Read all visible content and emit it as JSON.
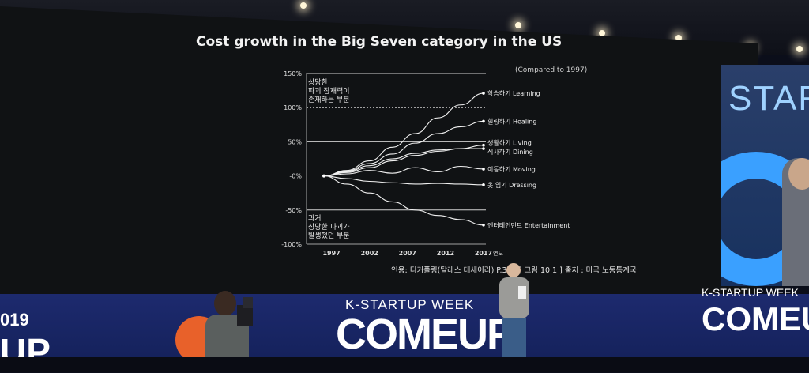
{
  "slide": {
    "title": "Cost growth in the Big Seven category in the US",
    "subtitle": "(Compared to 1997)",
    "annotation_top": [
      "상당한",
      "파괴 잠재력이",
      "존재하는 부분"
    ],
    "annotation_bottom": [
      "과거",
      "상당한 파괴가",
      "발생했던 부분"
    ],
    "caption": "인용: 디커플링(탈레스 테세이라) P.355 [ 그림 10.1 ]   출처 : 미국 노동통계국"
  },
  "chart_data": {
    "type": "line",
    "x_ticks": [
      "1997",
      "2002",
      "2007",
      "2012",
      "2017"
    ],
    "x_unit": "연도",
    "y_ticks": [
      "150%",
      "100%",
      "50%",
      "-0%",
      "-50%",
      "-100%"
    ],
    "ylim": [
      -100,
      150
    ],
    "x": [
      1996,
      1999,
      2002,
      2005,
      2008,
      2011,
      2014,
      2017
    ],
    "series": [
      {
        "name": "학습하기 Learning",
        "values": [
          0,
          8,
          22,
          42,
          62,
          85,
          104,
          121
        ]
      },
      {
        "name": "힐링하기 Healing",
        "values": [
          0,
          7,
          18,
          32,
          48,
          62,
          72,
          80
        ]
      },
      {
        "name": "생활하기 Living",
        "values": [
          0,
          6,
          15,
          25,
          33,
          38,
          40,
          45
        ]
      },
      {
        "name": "식사하기 Dining",
        "values": [
          0,
          5,
          12,
          22,
          30,
          36,
          40,
          40
        ]
      },
      {
        "name": "이동하기 Moving",
        "values": [
          0,
          3,
          8,
          4,
          12,
          6,
          14,
          10
        ]
      },
      {
        "name": "옷 입기 Dressing",
        "values": [
          0,
          -4,
          -8,
          -10,
          -12,
          -11,
          -12,
          -13
        ]
      },
      {
        "name": "엔터테인먼트 Entertainment",
        "values": [
          0,
          -12,
          -25,
          -38,
          -50,
          -58,
          -64,
          -72
        ]
      }
    ],
    "reference_lines": [
      {
        "y": 150,
        "style": "solid"
      },
      {
        "y": 100,
        "style": "dashed"
      },
      {
        "y": 50,
        "style": "solid"
      },
      {
        "y": -50,
        "style": "solid"
      }
    ]
  },
  "stage": {
    "banner_week": "K-STARTUP WEEK",
    "banner_main": "COMEUP",
    "side_banner_week": "K-STARTUP WEEK",
    "side_banner_main": "COMEUP",
    "year_fragment": "019",
    "left_fragment": "UP",
    "side_screen_text": "START"
  }
}
